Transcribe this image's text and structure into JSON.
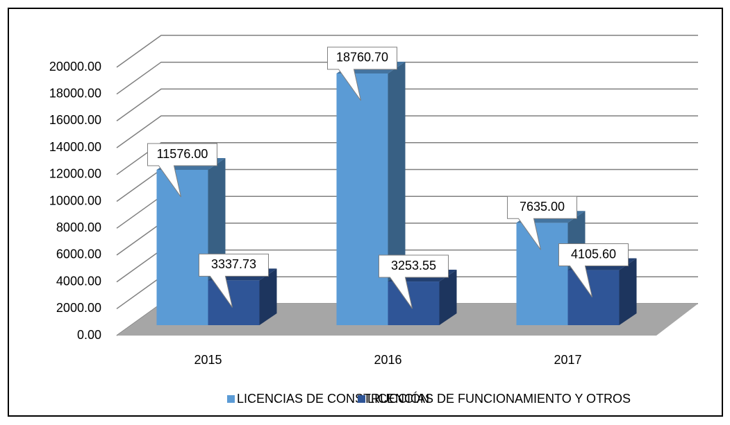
{
  "chart_data": {
    "type": "bar3d",
    "categories": [
      "2015",
      "2016",
      "2017"
    ],
    "series": [
      {
        "name": "LICENCIAS DE CONSTRUCCIÓN",
        "color": "#5b9bd5",
        "values": [
          11576,
          18760.7,
          7635
        ],
        "value_labels": [
          "11576.00",
          "18760.70",
          "7635.00"
        ]
      },
      {
        "name": "LICENCIAS DE FUNCIONAMIENTO Y OTROS",
        "color": "#2f5597",
        "values": [
          3337.73,
          3253.55,
          4105.6
        ],
        "value_labels": [
          "3337.73",
          "3253.55",
          "4105.60"
        ]
      }
    ],
    "ylim": [
      0,
      20000
    ],
    "yticks": [
      {
        "value": 0,
        "label": "0.00"
      },
      {
        "value": 2000,
        "label": "2000.00"
      },
      {
        "value": 4000,
        "label": "4000.00"
      },
      {
        "value": 6000,
        "label": "6000.00"
      },
      {
        "value": 8000,
        "label": "8000.00"
      },
      {
        "value": 10000,
        "label": "10000.00"
      },
      {
        "value": 12000,
        "label": "12000.00"
      },
      {
        "value": 14000,
        "label": "14000.00"
      },
      {
        "value": 16000,
        "label": "16000.00"
      },
      {
        "value": 18000,
        "label": "18000.00"
      },
      {
        "value": 20000,
        "label": "20000.00"
      }
    ],
    "grid": true,
    "legend": "bottom"
  }
}
